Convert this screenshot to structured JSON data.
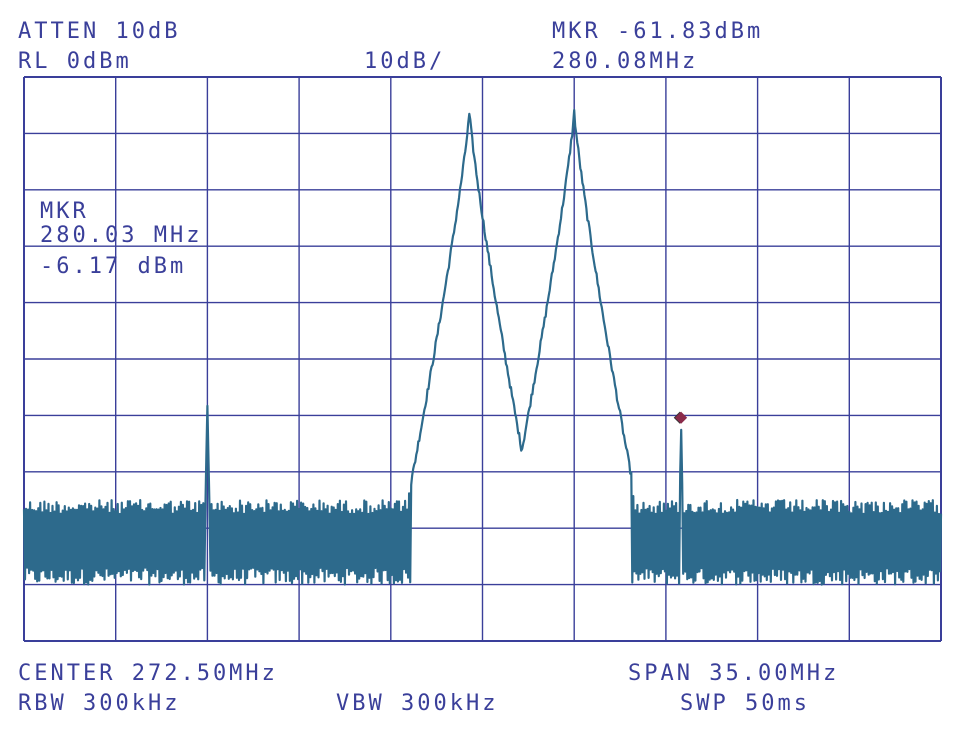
{
  "header": {
    "atten": "ATTEN 10dB",
    "rl": "RL 0dBm",
    "scale": "10dB/",
    "marker_level": "MKR -61.83dBm",
    "marker_freq": "280.08MHz"
  },
  "inset": {
    "title": "MKR",
    "freq": "280.03 MHz",
    "level": "-6.17 dBm"
  },
  "footer": {
    "center": "CENTER 272.50MHz",
    "span": "SPAN 35.00MHz",
    "rbw": "RBW 300kHz",
    "vbw": "VBW 300kHz",
    "swp": "SWP 50ms"
  },
  "colors": {
    "grid": "#3a3f9a",
    "trace": "#2d6a8c",
    "marker_active": "#8a2a4a"
  },
  "chart_data": {
    "type": "line",
    "xlabel": "",
    "ylabel": "",
    "xlim": [
      255.0,
      290.0
    ],
    "ylim": [
      -100,
      0
    ],
    "grid": true,
    "x_divisions": 10,
    "y_divisions": 10,
    "series": [
      {
        "kind": "noise-floor",
        "level_band": [
          -90,
          -75
        ]
      },
      {
        "kind": "peaks",
        "peaks": [
          {
            "freq": 262.0,
            "level": -58
          },
          {
            "freq": 272.0,
            "level": -6.2
          },
          {
            "freq": 276.0,
            "level": -6.2
          },
          {
            "freq": 280.08,
            "level": -61.83
          }
        ]
      }
    ],
    "markers": [
      {
        "freq": 280.03,
        "level": -6.17,
        "style": "hollow-diamond"
      },
      {
        "freq": 280.08,
        "level": -61.83,
        "style": "filled-diamond"
      }
    ]
  }
}
